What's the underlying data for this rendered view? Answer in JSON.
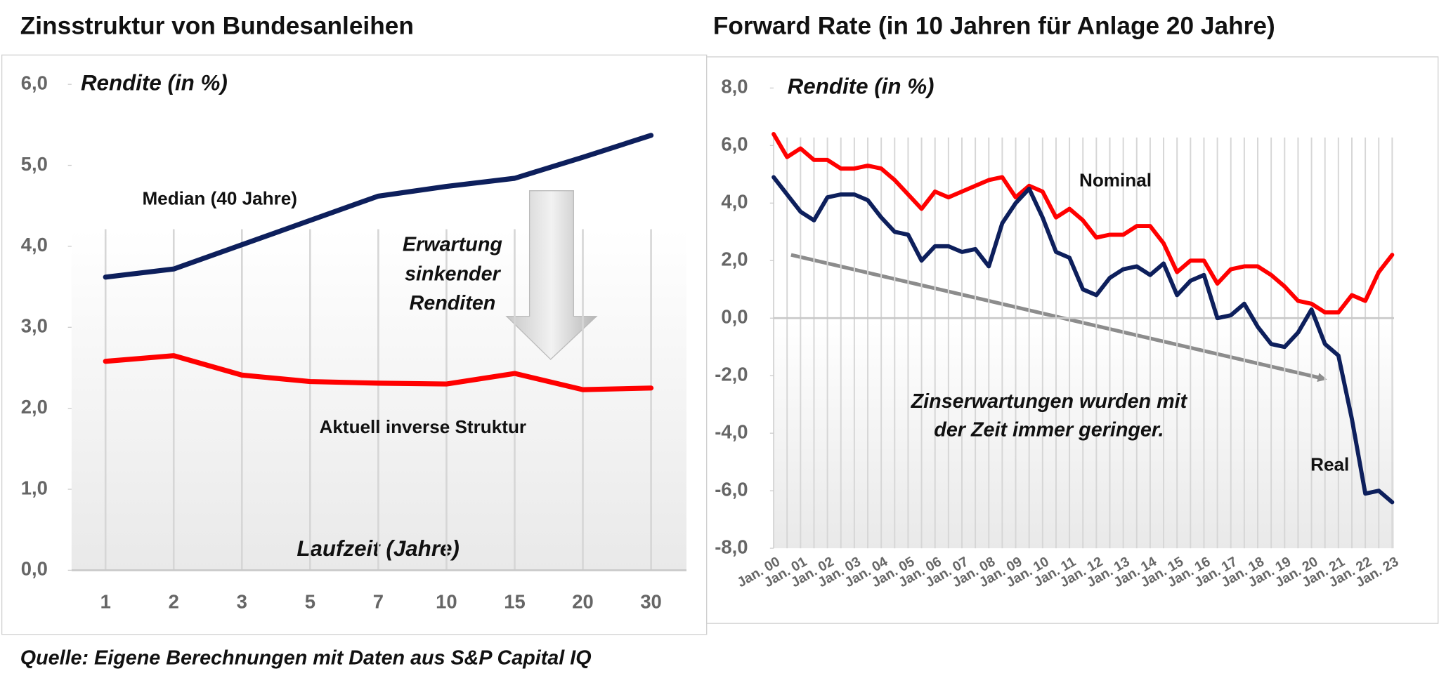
{
  "chart_data": [
    {
      "type": "line",
      "title": "Zinsstruktur von Bundesanleihen",
      "y_label": "Rendite (in %)",
      "x_label": "Laufzeit (Jahre)",
      "annotation": [
        "Erwartung",
        "sinkender",
        "Renditen"
      ],
      "categories": [
        "1",
        "2",
        "3",
        "5",
        "7",
        "10",
        "15",
        "20",
        "30"
      ],
      "series": [
        {
          "name": "Median (40 Jahre)",
          "color": "#0d1f5c",
          "values": [
            3.62,
            3.72,
            4.02,
            4.32,
            4.62,
            4.74,
            4.84,
            5.1,
            5.37
          ]
        },
        {
          "name": "Aktuell inverse Struktur",
          "color": "#ff0000",
          "values": [
            2.58,
            2.65,
            2.41,
            2.33,
            2.31,
            2.3,
            2.43,
            2.23,
            2.25
          ]
        }
      ],
      "ylim": [
        0,
        6
      ],
      "yticks": [
        {
          "value": 0,
          "label": "0,0"
        },
        {
          "value": 1,
          "label": "1,0"
        },
        {
          "value": 2,
          "label": "2,0"
        },
        {
          "value": 3,
          "label": "3,0"
        },
        {
          "value": 4,
          "label": "4,0"
        },
        {
          "value": 5,
          "label": "5,0"
        },
        {
          "value": 6,
          "label": "6,0"
        }
      ]
    },
    {
      "type": "line",
      "title": "Forward Rate (in 10 Jahren für Anlage 20 Jahre)",
      "y_label": "Rendite (in %)",
      "annotation": [
        "Zinserwartungen wurden mit",
        "der Zeit immer geringer."
      ],
      "categories": [
        "Jan. 00",
        null,
        "Jan. 01",
        null,
        "Jan. 02",
        null,
        "Jan. 03",
        null,
        "Jan. 04",
        null,
        "Jan. 05",
        null,
        "Jan. 06",
        null,
        "Jan. 07",
        null,
        "Jan. 08",
        null,
        "Jan. 09",
        null,
        "Jan. 10",
        null,
        "Jan. 11",
        null,
        "Jan. 12",
        null,
        "Jan. 13",
        null,
        "Jan. 14",
        null,
        "Jan. 15",
        null,
        "Jan. 16",
        null,
        "Jan. 17",
        null,
        "Jan. 18",
        null,
        "Jan. 19",
        null,
        "Jan. 20",
        null,
        "Jan. 21",
        null,
        "Jan. 22",
        null,
        "Jan. 23"
      ],
      "series": [
        {
          "name": "Nominal",
          "color": "#ff0000",
          "values": [
            6.4,
            5.6,
            5.9,
            5.5,
            5.5,
            5.2,
            5.2,
            5.3,
            5.2,
            4.8,
            4.3,
            3.8,
            4.4,
            4.2,
            4.4,
            4.6,
            4.8,
            4.9,
            4.2,
            4.6,
            4.4,
            3.5,
            3.8,
            3.4,
            2.8,
            2.9,
            2.9,
            3.2,
            3.2,
            2.6,
            1.6,
            2.0,
            2.0,
            1.2,
            1.7,
            1.8,
            1.8,
            1.5,
            1.1,
            0.6,
            0.5,
            0.2,
            0.2,
            0.8,
            0.6,
            1.6,
            2.2
          ]
        },
        {
          "name": "Real",
          "color": "#0d1f5c",
          "values": [
            4.9,
            4.3,
            3.7,
            3.4,
            4.2,
            4.3,
            4.3,
            4.1,
            3.5,
            3.0,
            2.9,
            2.0,
            2.5,
            2.5,
            2.3,
            2.4,
            1.8,
            3.3,
            4.0,
            4.5,
            3.5,
            2.3,
            2.1,
            1.0,
            0.8,
            1.4,
            1.7,
            1.8,
            1.5,
            1.9,
            0.8,
            1.3,
            1.5,
            0.0,
            0.1,
            0.5,
            -0.3,
            -0.9,
            -1.0,
            -0.5,
            0.3,
            -0.9,
            -1.3,
            -3.5,
            -6.1,
            -6.0,
            -6.4
          ]
        }
      ],
      "ylim": [
        -8,
        8
      ],
      "yticks": [
        {
          "value": -8,
          "label": "-8,0"
        },
        {
          "value": -6,
          "label": "-6,0"
        },
        {
          "value": -4,
          "label": "-4,0"
        },
        {
          "value": -2,
          "label": "-2,0"
        },
        {
          "value": 0,
          "label": "0,0"
        },
        {
          "value": 2,
          "label": "2,0"
        },
        {
          "value": 4,
          "label": "4,0"
        },
        {
          "value": 6,
          "label": "6,0"
        },
        {
          "value": 8,
          "label": "8,0"
        }
      ]
    }
  ],
  "source": "Quelle: Eigene Berechnungen mit Daten aus S&P Capital IQ"
}
